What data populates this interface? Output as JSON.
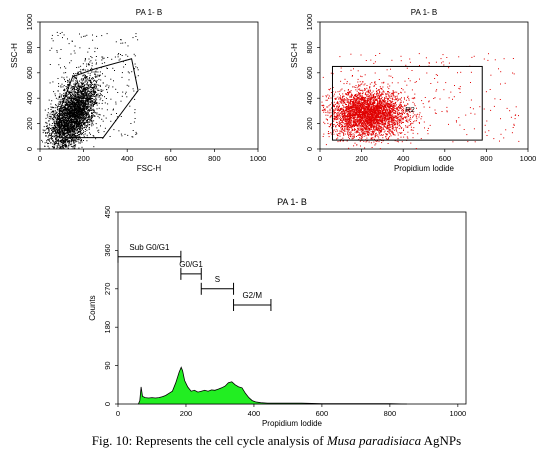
{
  "charts": [
    {
      "type": "scatter",
      "title": "PA 1- B",
      "xlabel": "FSC-H",
      "ylabel": "SSC-H",
      "xlim": [
        0,
        1000
      ],
      "ylim": [
        0,
        1000
      ],
      "xticks": [
        "0",
        "200",
        "400",
        "600",
        "800",
        "1000"
      ],
      "yticks": [
        "0",
        "200",
        "400",
        "600",
        "800",
        "1000"
      ],
      "point_color": "#000000",
      "cloud": {
        "center": [
          150,
          270
        ],
        "spread": [
          55,
          120
        ],
        "n": 3500
      },
      "gate_polygon": [
        [
          90,
          90
        ],
        [
          290,
          90
        ],
        [
          450,
          460
        ],
        [
          420,
          710
        ],
        [
          250,
          630
        ],
        [
          150,
          570
        ],
        [
          90,
          300
        ]
      ]
    },
    {
      "type": "scatter",
      "title": "PA 1- B",
      "xlabel": "Propidium Iodide",
      "ylabel": "SSC-H",
      "xlim": [
        0,
        1000
      ],
      "ylim": [
        0,
        1000
      ],
      "xticks": [
        "0",
        "200",
        "400",
        "600",
        "800",
        "1000"
      ],
      "yticks": [
        "0",
        "200",
        "400",
        "600",
        "800",
        "1000"
      ],
      "point_color": "#e00000",
      "cloud": {
        "center": [
          230,
          280
        ],
        "spread": [
          90,
          90
        ],
        "n": 3500
      },
      "gate_rect": [
        [
          60,
          70
        ],
        [
          780,
          650
        ]
      ],
      "gate_label": "R2",
      "gate_label_pos": [
        410,
        290
      ]
    },
    {
      "type": "area",
      "title": "PA 1- B",
      "xlabel": "Propidium Iodide",
      "ylabel": "Counts",
      "xlim": [
        0,
        1024
      ],
      "ylim": [
        0,
        450
      ],
      "xticks": [
        "0",
        "200",
        "400",
        "600",
        "800",
        "1000"
      ],
      "yticks": [
        "0",
        "90",
        "180",
        "270",
        "360",
        "450"
      ],
      "fill_color": "#22ee22",
      "histogram": [
        [
          60,
          0
        ],
        [
          64,
          8
        ],
        [
          68,
          40
        ],
        [
          72,
          18
        ],
        [
          80,
          15
        ],
        [
          90,
          14
        ],
        [
          100,
          15
        ],
        [
          110,
          14
        ],
        [
          120,
          15
        ],
        [
          130,
          17
        ],
        [
          140,
          20
        ],
        [
          150,
          25
        ],
        [
          160,
          30
        ],
        [
          170,
          50
        ],
        [
          180,
          75
        ],
        [
          186,
          86
        ],
        [
          190,
          78
        ],
        [
          196,
          55
        ],
        [
          205,
          40
        ],
        [
          215,
          30
        ],
        [
          225,
          32
        ],
        [
          235,
          28
        ],
        [
          245,
          30
        ],
        [
          255,
          32
        ],
        [
          265,
          30
        ],
        [
          275,
          33
        ],
        [
          285,
          32
        ],
        [
          295,
          35
        ],
        [
          305,
          38
        ],
        [
          315,
          42
        ],
        [
          325,
          50
        ],
        [
          335,
          52
        ],
        [
          345,
          45
        ],
        [
          355,
          40
        ],
        [
          365,
          38
        ],
        [
          375,
          25
        ],
        [
          385,
          15
        ],
        [
          395,
          8
        ],
        [
          405,
          5
        ],
        [
          420,
          3
        ],
        [
          440,
          2
        ],
        [
          460,
          2
        ],
        [
          500,
          2
        ],
        [
          540,
          2
        ],
        [
          600,
          1
        ],
        [
          700,
          1
        ],
        [
          800,
          1
        ],
        [
          850,
          0
        ]
      ],
      "markers": [
        {
          "label": "Sub G0/G1",
          "range": [
            0,
            185
          ],
          "y": 345
        },
        {
          "label": "G0/G1",
          "range": [
            185,
            245
          ],
          "y": 305
        },
        {
          "label": "S",
          "range": [
            245,
            340
          ],
          "y": 270
        },
        {
          "label": "G2/M",
          "range": [
            340,
            450
          ],
          "y": 232
        }
      ]
    }
  ],
  "caption": {
    "prefix": "Fig. 10: Represents the cell cycle analysis of ",
    "species": "Musa paradisiaca",
    "suffix": " AgNPs"
  }
}
